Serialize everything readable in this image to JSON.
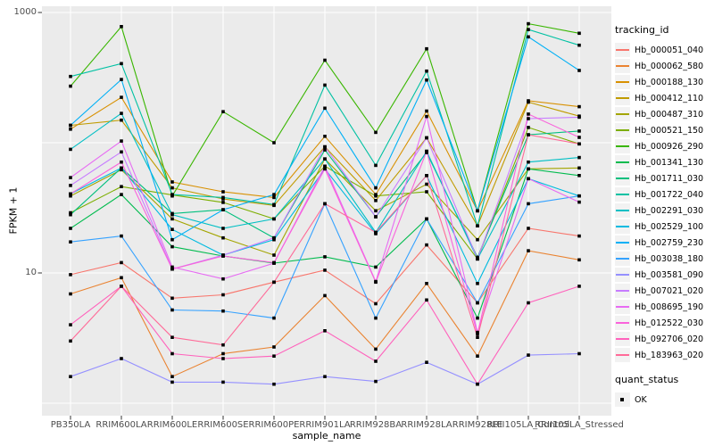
{
  "chart_data": {
    "type": "line",
    "title": "",
    "xlabel": "sample_name",
    "ylabel": "FPKM + 1",
    "y_scale": "log10",
    "ylim": [
      1,
      1000
    ],
    "grid": true,
    "legend_position": "right",
    "legend_title": "tracking_id",
    "legend2_title": "quant_status",
    "legend2_items": [
      {
        "label": "OK"
      }
    ],
    "y_ticks": [
      {
        "label": "1000",
        "value": 1000
      },
      {
        "label": "10",
        "value": 10
      }
    ],
    "y_gridline_values": [
      1000,
      100,
      10,
      1
    ],
    "panel_bg": "#ebebeb",
    "grid_color": "#ffffff",
    "point_color": "#000000",
    "tick_color": "#333333",
    "categories": [
      "PB350LA",
      "RRIM600LA",
      "RRIM600LE",
      "RRIM600SE",
      "RRIM600PE",
      "RRIM901LA",
      "RRIM928BA",
      "RRIM928LA",
      "RRIM928LE",
      "RRII105LA_Control",
      "RRII105LA_Stressed"
    ],
    "series": [
      {
        "name": "Hb_000051_040",
        "color": "#F8766D",
        "values": [
          9.7,
          12,
          6.4,
          6.8,
          8.5,
          10.5,
          5.8,
          16.4,
          5.9,
          22,
          19.2
        ]
      },
      {
        "name": "Hb_000062_580",
        "color": "#EA8331",
        "values": [
          6.9,
          9.2,
          1.6,
          2.4,
          2.7,
          6.7,
          2.6,
          8.3,
          2.3,
          14.8,
          12.6
        ]
      },
      {
        "name": "Hb_000188_130",
        "color": "#D89000",
        "values": [
          127,
          223,
          50,
          42,
          38,
          112,
          40,
          175,
          30,
          210,
          189
        ]
      },
      {
        "name": "Hb_000412_110",
        "color": "#C09B00",
        "values": [
          136,
          149,
          45,
          37,
          33,
          93,
          36,
          109,
          23,
          205,
          160
        ]
      },
      {
        "name": "Hb_000487_310",
        "color": "#A3A500",
        "values": [
          39,
          62,
          26,
          18.6,
          13.7,
          75,
          30,
          48,
          18,
          63,
          64
        ]
      },
      {
        "name": "Hb_000521_150",
        "color": "#7CAE00",
        "values": [
          29,
          46,
          39.7,
          34.8,
          26,
          66,
          39,
          42,
          12.8,
          131,
          98
        ]
      },
      {
        "name": "Hb_000926_290",
        "color": "#39B600",
        "values": [
          272,
          780,
          39,
          173,
          100,
          430,
          120,
          526,
          30,
          820,
          692
        ]
      },
      {
        "name": "Hb_001341_130",
        "color": "#00BB4E",
        "values": [
          22,
          40,
          15.9,
          13.5,
          11.9,
          13.3,
          11.1,
          26,
          4.5,
          63,
          56
        ]
      },
      {
        "name": "Hb_001711_030",
        "color": "#00BF7D",
        "values": [
          28,
          64,
          28.6,
          30.6,
          18.6,
          88,
          27,
          84,
          13.2,
          115,
          123
        ]
      },
      {
        "name": "Hb_001722_040",
        "color": "#00C1A3",
        "values": [
          323,
          405,
          40,
          38,
          33.5,
          277,
          67,
          355,
          23,
          740,
          561
        ]
      },
      {
        "name": "Hb_002291_030",
        "color": "#00BFC4",
        "values": [
          89,
          168,
          28,
          22,
          26,
          75,
          20.5,
          86,
          12.8,
          71,
          77
        ]
      },
      {
        "name": "Hb_002529_100",
        "color": "#00BAE0",
        "values": [
          40.5,
          64,
          21.6,
          13.7,
          18,
          63,
          20,
          56,
          8.3,
          53,
          39
        ]
      },
      {
        "name": "Hb_002759_230",
        "color": "#00B0F6",
        "values": [
          136,
          306,
          18,
          30.6,
          40,
          184,
          45,
          303,
          30,
          650,
          359
        ]
      },
      {
        "name": "Hb_003038_180",
        "color": "#35A2FF",
        "values": [
          17.3,
          19.2,
          5.2,
          5.1,
          4.5,
          34,
          4.5,
          26,
          5.9,
          34,
          39
        ]
      },
      {
        "name": "Hb_003581_090",
        "color": "#9590FF",
        "values": [
          1.6,
          2.2,
          1.45,
          1.45,
          1.4,
          1.6,
          1.47,
          2.06,
          1.4,
          2.34,
          2.4
        ]
      },
      {
        "name": "Hb_007021_020",
        "color": "#C77CFF",
        "values": [
          47,
          85,
          10.7,
          13.7,
          18.6,
          93,
          27,
          109,
          12.8,
          153,
          157
        ]
      },
      {
        "name": "Hb_008695_190",
        "color": "#E76BF3",
        "values": [
          54,
          103,
          11.1,
          9.0,
          11.9,
          66,
          8.6,
          159,
          3.5,
          53,
          35
        ]
      },
      {
        "name": "Hb_012522_030",
        "color": "#FA62DB",
        "values": [
          40.5,
          71,
          10.7,
          13.5,
          12,
          63,
          8.5,
          86,
          3.4,
          166,
          110
        ]
      },
      {
        "name": "Hb_092706_020",
        "color": "#FF62BC",
        "values": [
          4.0,
          7.9,
          2.4,
          2.2,
          2.3,
          3.6,
          2.1,
          6.2,
          1.4,
          5.9,
          7.9
        ]
      },
      {
        "name": "Hb_183963_020",
        "color": "#FF6A98",
        "values": [
          3.0,
          7.9,
          3.2,
          2.8,
          8.5,
          34,
          20.5,
          56,
          3.2,
          115,
          98
        ]
      }
    ]
  }
}
